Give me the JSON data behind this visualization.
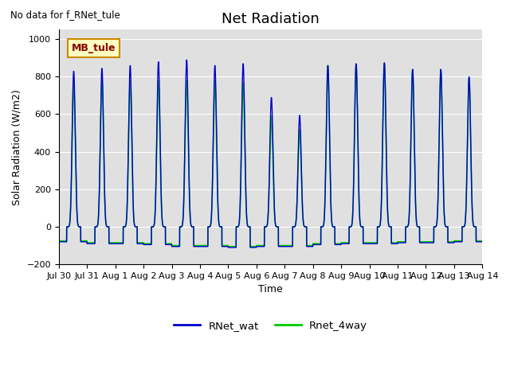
{
  "title": "Net Radiation",
  "ylabel": "Solar Radiation (W/m2)",
  "xlabel": "Time",
  "no_data_text": "No data for f_RNet_tule",
  "annotation_text": "MB_tule",
  "ylim": [
    -200,
    1050
  ],
  "yticks": [
    -200,
    0,
    200,
    400,
    600,
    800,
    1000
  ],
  "xtick_labels": [
    "Jul 30",
    "Jul 31",
    "Aug 1",
    "Aug 2",
    "Aug 3",
    "Aug 4",
    "Aug 5",
    "Aug 6",
    "Aug 7",
    "Aug 8",
    "Aug 9",
    "Aug 10",
    "Aug 11",
    "Aug 12",
    "Aug 13",
    "Aug 14"
  ],
  "line1_color": "#0000CC",
  "line2_color": "#00CC00",
  "line1_label": "RNet_wat",
  "line2_label": "Rnet_4way",
  "background_color": "#E0E0E0",
  "title_fontsize": 13,
  "label_fontsize": 9,
  "tick_fontsize": 8,
  "annotation_facecolor": "#FFFFC0",
  "annotation_edgecolor": "#CC8800",
  "annotation_textcolor": "#880000",
  "n_days": 15,
  "points_per_day": 288,
  "day_peak_blue": [
    830,
    845,
    860,
    880,
    890,
    860,
    870,
    690,
    595,
    860,
    870,
    875,
    840,
    840,
    800
  ],
  "day_peak_green": [
    760,
    780,
    775,
    780,
    780,
    780,
    770,
    590,
    520,
    860,
    865,
    870,
    835,
    835,
    790
  ],
  "day_trough_blue": [
    -80,
    -90,
    -90,
    -95,
    -105,
    -105,
    -110,
    -105,
    -105,
    -95,
    -90,
    -90,
    -85,
    -85,
    -80
  ],
  "day_trough_green": [
    -75,
    -85,
    -85,
    -90,
    -100,
    -100,
    -105,
    -100,
    -100,
    -90,
    -85,
    -85,
    -80,
    -80,
    -75
  ],
  "aug6_peak_blue": 690,
  "aug6_peak_green": 590,
  "aug7_peak_blue": 595,
  "aug7_peak_green": 520
}
